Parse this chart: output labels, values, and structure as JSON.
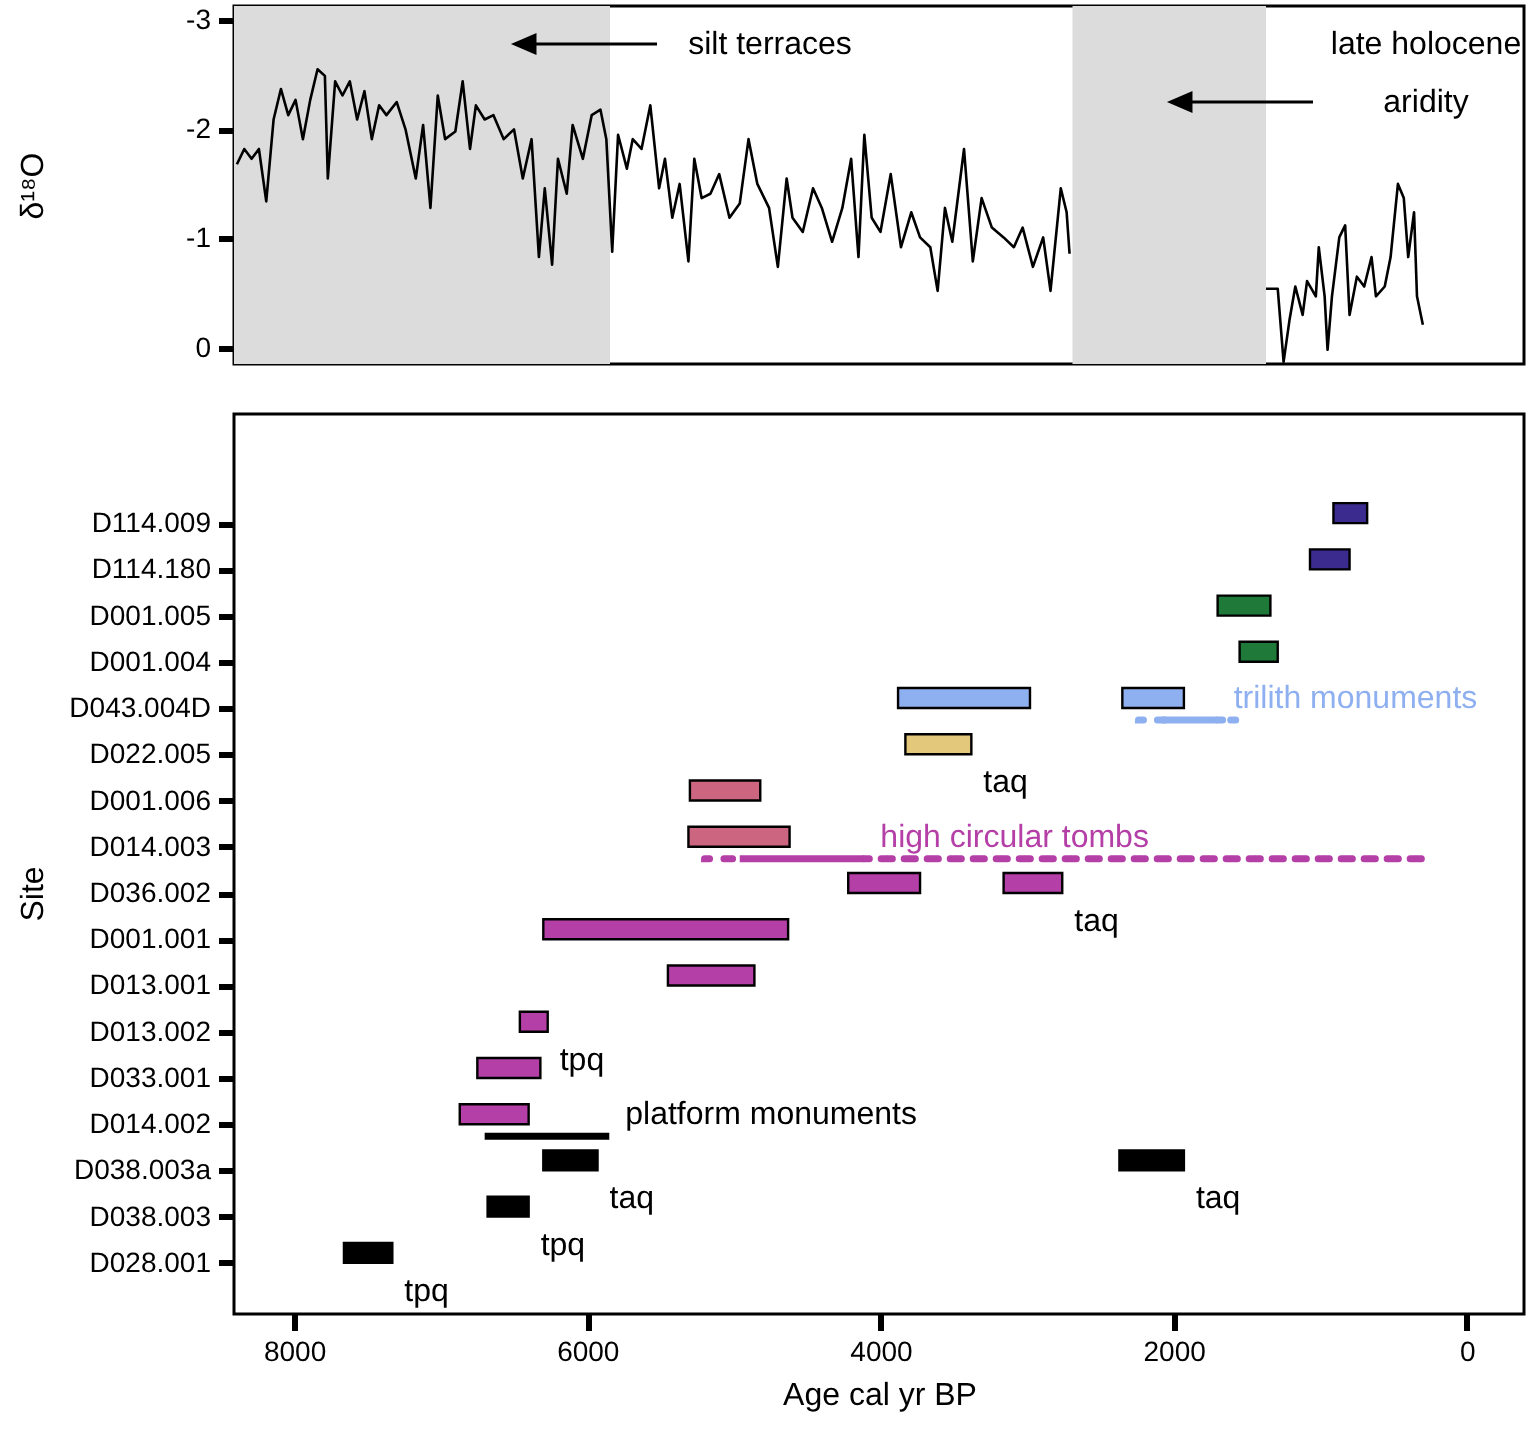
{
  "chart_data": [
    {
      "type": "line",
      "ylabel": "δ¹⁸O",
      "xlim": [
        8410,
        -390
      ],
      "ylim": [
        0.15,
        -3.13
      ],
      "yticks": [
        -3,
        -2,
        -1,
        0
      ],
      "tick_labels": "y",
      "bands": [
        {
          "axis": "x",
          "from": 8410,
          "to": 5845,
          "label": "silt terraces",
          "color": "#dcdcdc"
        },
        {
          "axis": "x",
          "from": 2690,
          "to": 1370,
          "label": "late holocene\naridity",
          "color": "#dcdcdc"
        }
      ],
      "series": [
        {
          "color": "#000000",
          "x": [
            8390,
            8340,
            8290,
            8240,
            8190,
            8140,
            8090,
            8040,
            7990,
            7940,
            7890,
            7840,
            7790,
            7770,
            7720,
            7670,
            7620,
            7570,
            7520,
            7470,
            7420,
            7370,
            7300,
            7240,
            7170,
            7120,
            7070,
            7020,
            6970,
            6900,
            6850,
            6800,
            6760,
            6700,
            6640,
            6570,
            6500,
            6440,
            6380,
            6330,
            6290,
            6240,
            6200,
            6140,
            6100,
            6030,
            5970,
            5910,
            5870,
            5830,
            5790,
            5730,
            5690,
            5630,
            5570,
            5510,
            5470,
            5420,
            5370,
            5310,
            5270,
            5220,
            5160,
            5100,
            5030,
            4960,
            4900,
            4840,
            4760,
            4700,
            4640,
            4600,
            4530,
            4460,
            4400,
            4330,
            4260,
            4200,
            4150,
            4110,
            4060,
            4000,
            3930,
            3860,
            3790,
            3730,
            3660,
            3610,
            3560,
            3510,
            3430,
            3370,
            3310,
            3240,
            3160,
            3090,
            3030,
            2960,
            2890,
            2840,
            2770,
            2730,
            2710
          ],
          "values": [
            -1.68,
            -1.82,
            -1.73,
            -1.82,
            -1.34,
            -2.09,
            -2.37,
            -2.13,
            -2.27,
            -1.91,
            -2.27,
            -2.55,
            -2.49,
            -1.55,
            -2.44,
            -2.31,
            -2.44,
            -2.09,
            -2.35,
            -1.91,
            -2.22,
            -2.13,
            -2.25,
            -2.0,
            -1.55,
            -2.04,
            -1.28,
            -2.31,
            -1.91,
            -1.98,
            -2.44,
            -1.82,
            -2.22,
            -2.09,
            -2.13,
            -1.91,
            -2.0,
            -1.55,
            -1.91,
            -0.83,
            -1.46,
            -0.76,
            -1.73,
            -1.41,
            -2.04,
            -1.73,
            -2.13,
            -2.18,
            -1.91,
            -0.88,
            -1.95,
            -1.64,
            -1.91,
            -1.82,
            -2.22,
            -1.46,
            -1.73,
            -1.19,
            -1.5,
            -0.79,
            -1.73,
            -1.37,
            -1.41,
            -1.59,
            -1.19,
            -1.32,
            -1.91,
            -1.5,
            -1.28,
            -0.74,
            -1.55,
            -1.19,
            -1.06,
            -1.46,
            -1.28,
            -0.97,
            -1.28,
            -1.73,
            -0.83,
            -1.95,
            -1.19,
            -1.06,
            -1.59,
            -0.92,
            -1.24,
            -1.01,
            -0.92,
            -0.52,
            -1.28,
            -0.97,
            -1.82,
            -0.79,
            -1.37,
            -1.1,
            -1.01,
            -0.92,
            -1.1,
            -0.74,
            -1.01,
            -0.52,
            -1.46,
            -1.24,
            -0.86
          ]
        },
        {
          "color": "#000000",
          "x": [
            1370,
            1290,
            1250,
            1210,
            1170,
            1120,
            1090,
            1030,
            1010,
            970,
            950,
            920,
            870,
            830,
            800,
            750,
            700,
            650,
            620,
            560,
            520,
            470,
            430,
            400,
            360,
            340,
            300
          ],
          "values": [
            -0.54,
            -0.54,
            0.13,
            -0.25,
            -0.56,
            -0.3,
            -0.61,
            -0.47,
            -0.92,
            -0.47,
            0.02,
            -0.47,
            -1.01,
            -1.12,
            -0.3,
            -0.65,
            -0.56,
            -0.83,
            -0.47,
            -0.56,
            -0.83,
            -1.5,
            -1.37,
            -0.83,
            -1.24,
            -0.47,
            -0.21
          ]
        }
      ]
    },
    {
      "type": "bar",
      "orientation": "horizontal",
      "xlabel": "Age cal yr BP",
      "ylabel": "Site",
      "xlim": [
        8410,
        -390
      ],
      "xticks": [
        8000,
        6000,
        4000,
        2000,
        0
      ],
      "categories": [
        "D114.009",
        "D114.180",
        "D001.005",
        "D001.004",
        "D043.004D",
        "D022.005",
        "D001.006",
        "D014.003",
        "D036.002",
        "D001.001",
        "D013.001",
        "D013.002",
        "D033.001",
        "D014.002",
        "D038.003a",
        "D038.003",
        "D028.001"
      ],
      "series": [
        {
          "base": [
            680,
            800,
            1340,
            1290,
            2980,
            3380,
            4820,
            4620,
            3730,
            4630,
            4860,
            6270,
            6320,
            6400,
            5930,
            6400,
            7330
          ],
          "values": [
            230,
            270,
            360,
            260,
            900,
            450,
            480,
            690,
            490,
            1670,
            590,
            190,
            430,
            470,
            370,
            280,
            330
          ],
          "colors": [
            "#3b2b8f",
            "#3b2b8f",
            "#1f7a3a",
            "#1f7a3a",
            "#8fb0f0",
            "#e3c77a",
            "#cc6680",
            "#cc6680",
            "#b43fa6",
            "#b43fa6",
            "#b43fa6",
            "#b43fa6",
            "#b43fa6",
            "#b43fa6",
            "#000000",
            "#000000",
            "#000000"
          ]
        },
        {
          "base": [
            null,
            null,
            null,
            null,
            1930,
            null,
            null,
            null,
            2760,
            null,
            null,
            null,
            null,
            null,
            1930,
            null,
            null
          ],
          "values": [
            null,
            null,
            null,
            null,
            420,
            null,
            null,
            null,
            400,
            null,
            null,
            null,
            null,
            null,
            440,
            null,
            null
          ],
          "colors": [
            null,
            null,
            null,
            null,
            "#8fb0f0",
            null,
            null,
            null,
            "#b43fa6",
            null,
            null,
            null,
            null,
            null,
            "#000000",
            null,
            null
          ]
        },
        {
          "name": "platform monuments",
          "color": "#000000",
          "line_style": "solid",
          "base": [
            null,
            null,
            null,
            null,
            null,
            null,
            null,
            null,
            null,
            null,
            null,
            null,
            null,
            5850,
            null,
            null,
            null
          ],
          "values": [
            null,
            null,
            null,
            null,
            null,
            null,
            null,
            null,
            null,
            null,
            null,
            null,
            null,
            850,
            null,
            null,
            null
          ]
        },
        {
          "name": "high circular tombs",
          "color": "#b43fa6",
          "line_style": "solid",
          "base": [
            null,
            null,
            null,
            null,
            null,
            null,
            null,
            4110,
            null,
            null,
            null,
            null,
            null,
            null,
            null,
            null,
            null
          ],
          "values": [
            null,
            null,
            null,
            null,
            null,
            null,
            null,
            850,
            null,
            null,
            null,
            null,
            null,
            null,
            null,
            null,
            null
          ]
        },
        {
          "name": "trilith monuments",
          "color": "#8fb0f0",
          "line_style": "solid",
          "base": [
            null,
            null,
            null,
            null,
            1700,
            null,
            null,
            null,
            null,
            null,
            null,
            null,
            null,
            null,
            null,
            null,
            null
          ],
          "values": [
            null,
            null,
            null,
            null,
            380,
            null,
            null,
            null,
            null,
            null,
            null,
            null,
            null,
            null,
            null,
            null,
            null
          ]
        },
        {
          "line_style": "dotted",
          "base": [
            null,
            null,
            null,
            null,
            2080,
            null,
            null,
            4960,
            null,
            null,
            null,
            null,
            null,
            null,
            null,
            null,
            null
          ],
          "values": [
            null,
            null,
            null,
            null,
            160,
            null,
            null,
            240,
            null,
            null,
            null,
            null,
            null,
            null,
            null,
            null,
            null
          ],
          "colors": [
            null,
            null,
            null,
            null,
            "#8fb0f0",
            null,
            null,
            "#b43fa6",
            null,
            null,
            null,
            null,
            null,
            null,
            null,
            null,
            null
          ]
        },
        {
          "line_style": "dotted",
          "base": [
            null,
            null,
            null,
            null,
            1560,
            null,
            null,
            270,
            null,
            null,
            null,
            null,
            null,
            null,
            null,
            null,
            null
          ],
          "values": [
            null,
            null,
            null,
            null,
            140,
            null,
            null,
            3840,
            null,
            null,
            null,
            null,
            null,
            null,
            null,
            null,
            null
          ],
          "colors": [
            null,
            null,
            null,
            null,
            "#8fb0f0",
            null,
            null,
            "#b43fa6",
            null,
            null,
            null,
            null,
            null,
            null,
            null,
            null,
            null
          ]
        }
      ],
      "annotations": [
        {
          "text": "taq",
          "x": 3380,
          "y": "D022.005"
        },
        {
          "text": "taq",
          "x": 2760,
          "y": "D036.002"
        },
        {
          "text": "tpq",
          "x": 6270,
          "y": "D013.002"
        },
        {
          "text": "taq",
          "x": 5930,
          "y": "D038.003a"
        },
        {
          "text": "taq",
          "x": 1930,
          "y": "D038.003a"
        },
        {
          "text": "tpq",
          "x": 6400,
          "y": "D038.003"
        },
        {
          "text": "tpq",
          "x": 7330,
          "y": "D028.001"
        }
      ]
    }
  ]
}
